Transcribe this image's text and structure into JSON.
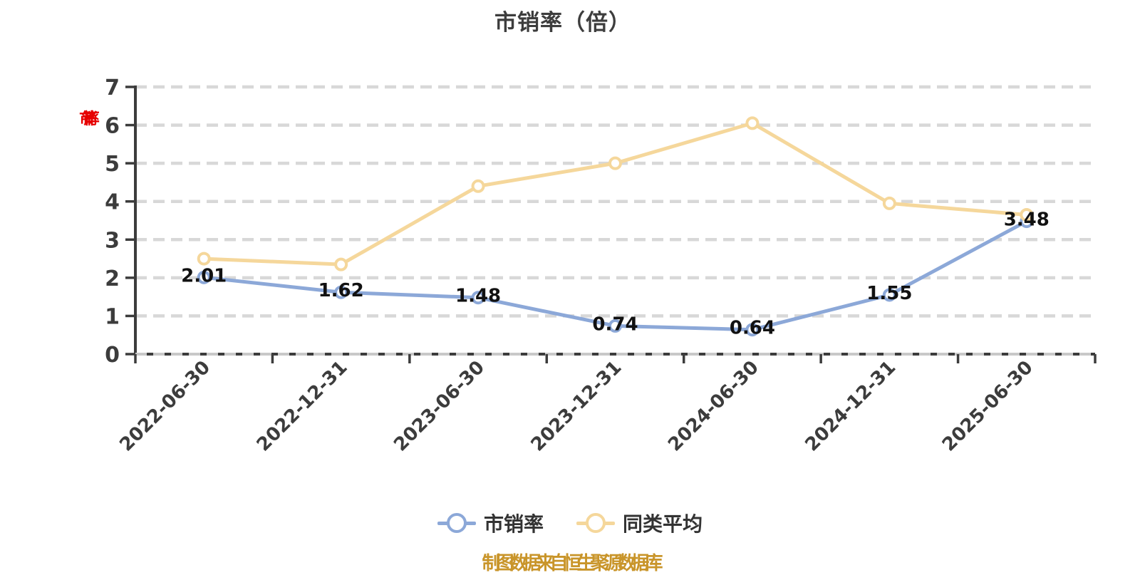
{
  "title": "市销率（倍）",
  "y_axis_name": "市销率",
  "footer_note": "制图数据来自恒生聚源数据库",
  "colors": {
    "series_main": "#8ca8d8",
    "series_peer": "#f5d79b",
    "axis": "#3c3c3c",
    "grid": "#d8d8d8",
    "value_label": "#111111",
    "tick_label": "#3c3c3c",
    "axis_name_red": "#e60000",
    "footer_orange": "#c9952a",
    "marker_fill": "#ffffff"
  },
  "legend": {
    "items": [
      {
        "label": "市销率",
        "color": "#8ca8d8"
      },
      {
        "label": "同类平均",
        "color": "#f5d79b"
      }
    ]
  },
  "chart_data": {
    "type": "line",
    "title": "市销率（倍）",
    "categories": [
      "2022-06-30",
      "2022-12-31",
      "2023-06-30",
      "2023-12-31",
      "2024-06-30",
      "2024-12-31",
      "2025-06-30"
    ],
    "series": [
      {
        "name": "市销率",
        "color": "#8ca8d8",
        "values": [
          2.01,
          1.62,
          1.48,
          0.74,
          0.64,
          1.55,
          3.48
        ],
        "labels": [
          "2.01",
          "1.62",
          "1.48",
          "0.74",
          "0.64",
          "1.55",
          "3.48"
        ],
        "show_labels": true
      },
      {
        "name": "同类平均",
        "color": "#f5d79b",
        "values": [
          2.5,
          2.35,
          4.4,
          5.0,
          6.05,
          3.95,
          3.65
        ],
        "show_labels": false
      }
    ],
    "ylim": [
      0,
      7
    ],
    "yticks": [
      0,
      1,
      2,
      3,
      4,
      5,
      6,
      7
    ],
    "xlabel": "",
    "ylabel": "",
    "grid": "horizontal-dashed",
    "legend_position": "bottom",
    "x_label_rotation_deg": 45
  }
}
